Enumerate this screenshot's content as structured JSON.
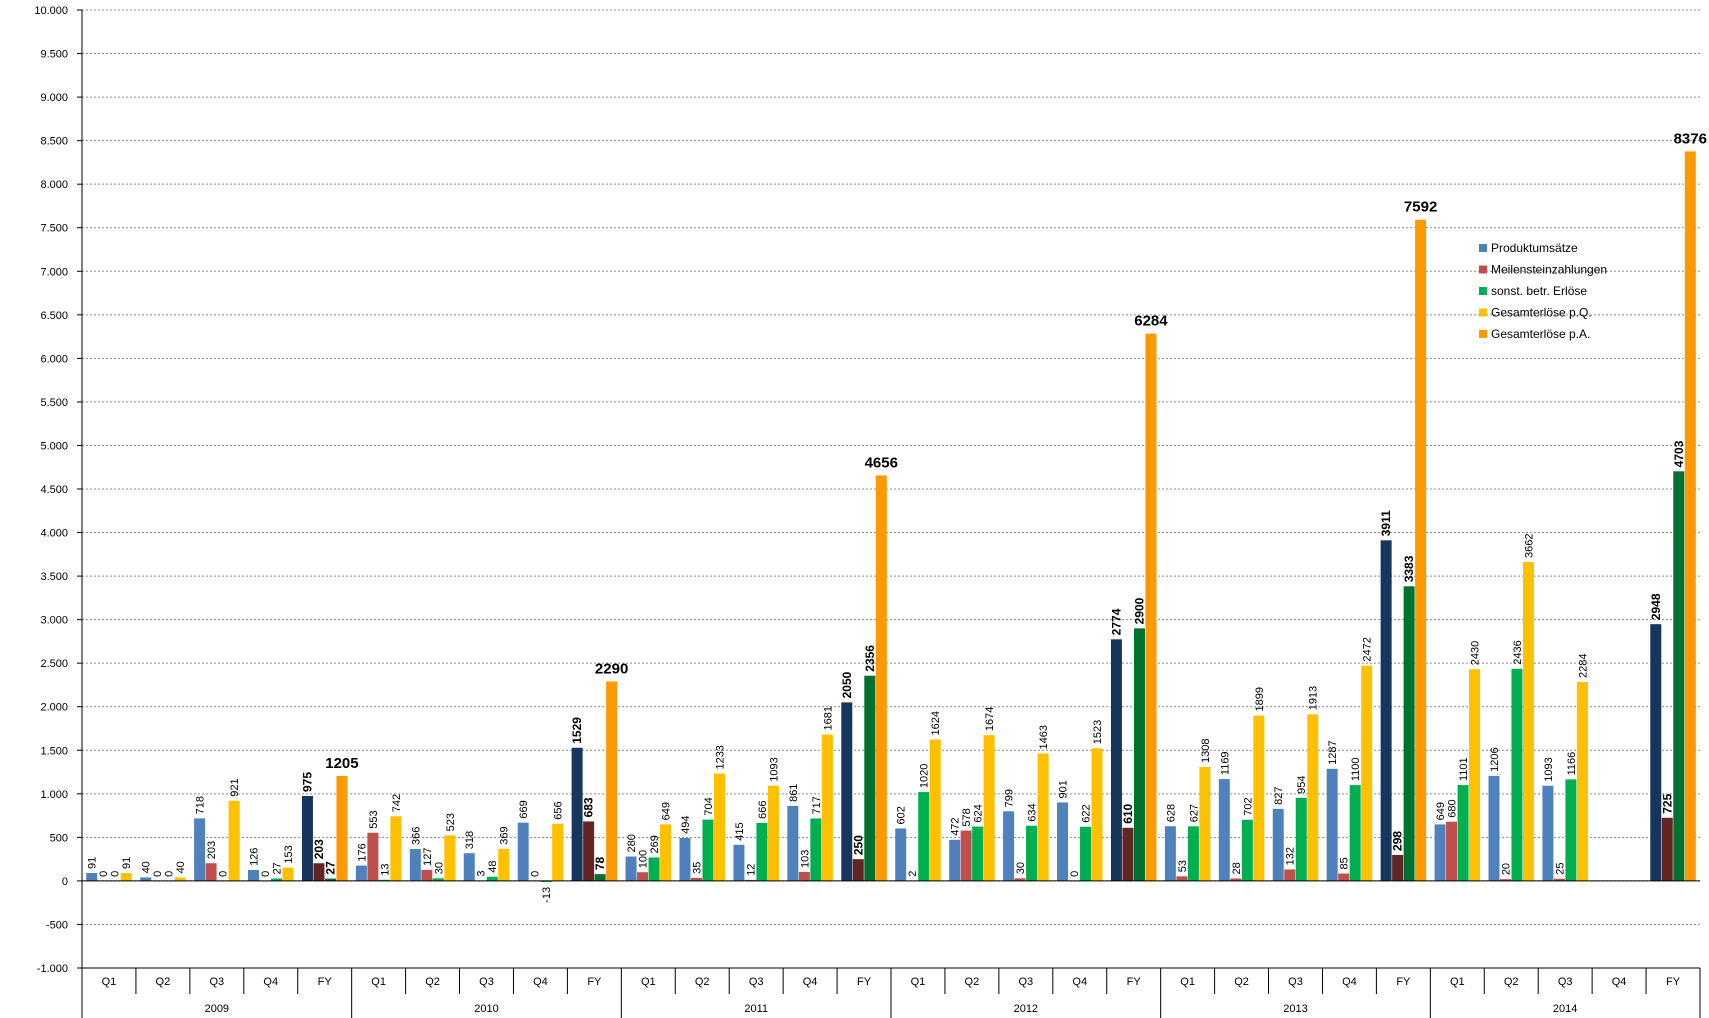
{
  "chart_data": {
    "type": "bar",
    "ylim": [
      -1000,
      10000
    ],
    "y_tick_values": [
      -1000,
      -500,
      0,
      500,
      1000,
      1500,
      2000,
      2500,
      3000,
      3500,
      4000,
      4500,
      5000,
      5500,
      6000,
      6500,
      7000,
      7500,
      8000,
      8500,
      9000,
      9500,
      10000
    ],
    "y_tick_labels": [
      "-1.000",
      "-500",
      "0",
      "500",
      "1.000",
      "1.500",
      "2.000",
      "2.500",
      "3.000",
      "3.500",
      "4.000",
      "4.500",
      "5.000",
      "5.500",
      "6.000",
      "6.500",
      "7.000",
      "7.500",
      "8.000",
      "8.500",
      "9.000",
      "9.500",
      "10.000"
    ],
    "grid": true,
    "legend_position": "right",
    "years": [
      "2009",
      "2010",
      "2011",
      "2012",
      "2013",
      "2014"
    ],
    "periods": [
      "Q1",
      "Q2",
      "Q3",
      "Q4",
      "FY"
    ],
    "categories": [
      "Q1",
      "Q2",
      "Q3",
      "Q4",
      "FY",
      "Q1",
      "Q2",
      "Q3",
      "Q4",
      "FY",
      "Q1",
      "Q2",
      "Q3",
      "Q4",
      "FY",
      "Q1",
      "Q2",
      "Q3",
      "Q4",
      "FY",
      "Q1",
      "Q2",
      "Q3",
      "Q4",
      "FY",
      "Q1",
      "Q2",
      "Q3",
      "Q4",
      "FY"
    ],
    "series": [
      {
        "name": "Produktumsätze",
        "color": "#4f81bd",
        "fy_color": "#17365d",
        "values": [
          91,
          40,
          718,
          126,
          975,
          176,
          366,
          318,
          669,
          1529,
          280,
          494,
          415,
          861,
          2050,
          602,
          472,
          799,
          901,
          2774,
          628,
          1169,
          827,
          1287,
          3911,
          649,
          1206,
          1093,
          null,
          2948
        ]
      },
      {
        "name": "Meilensteinzahlungen",
        "color": "#c0504d",
        "fy_color": "#632523",
        "values": [
          0,
          0,
          203,
          0,
          203,
          553,
          127,
          3,
          0,
          683,
          100,
          35,
          12,
          103,
          250,
          2,
          578,
          30,
          0,
          610,
          53,
          28,
          132,
          85,
          298,
          680,
          20,
          25,
          null,
          725
        ]
      },
      {
        "name": "sonst. betr. Erlöse",
        "color": "#00b050",
        "fy_color": "#00722f",
        "values": [
          0,
          0,
          0,
          27,
          27,
          13,
          30,
          48,
          -13,
          78,
          269,
          704,
          666,
          717,
          2356,
          1020,
          624,
          634,
          622,
          2900,
          627,
          702,
          954,
          1100,
          3383,
          1101,
          2436,
          1166,
          null,
          4703
        ]
      },
      {
        "name": "Gesamterlöse    p.Q.",
        "color": "#ffc000",
        "values": [
          91,
          40,
          921,
          153,
          null,
          742,
          523,
          369,
          656,
          null,
          649,
          1233,
          1093,
          1681,
          null,
          1624,
          1674,
          1463,
          1523,
          null,
          1308,
          1899,
          1913,
          2472,
          null,
          2430,
          3662,
          2284,
          null,
          null
        ]
      },
      {
        "name": "Gesamterlöse    p.A.",
        "color": "#ff9900",
        "values": [
          null,
          null,
          null,
          null,
          1205,
          null,
          null,
          null,
          null,
          2290,
          null,
          null,
          null,
          null,
          4656,
          null,
          null,
          null,
          null,
          6284,
          null,
          null,
          null,
          null,
          7592,
          null,
          null,
          null,
          null,
          8376
        ]
      }
    ]
  }
}
